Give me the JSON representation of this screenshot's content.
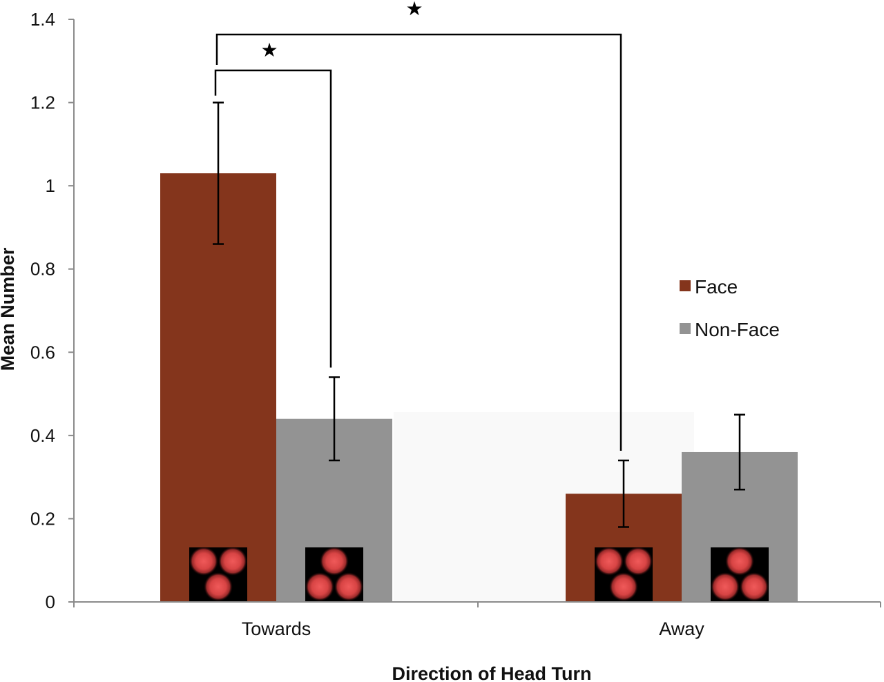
{
  "chart_data": {
    "type": "bar",
    "xlabel": "Direction of Head Turn",
    "ylabel": "Mean Number",
    "ylim": [
      0,
      1.4
    ],
    "yticks": [
      "0",
      "0.2",
      "0.4",
      "0.6",
      "0.8",
      "1",
      "1.2",
      "1.4"
    ],
    "categories": [
      "Towards",
      "Away"
    ],
    "series": [
      {
        "name": "Face",
        "color": "#84351c",
        "values": [
          1.03,
          0.26
        ],
        "error": [
          0.17,
          0.08
        ]
      },
      {
        "name": "Non-Face",
        "color": "#939393",
        "values": [
          0.44,
          0.36
        ],
        "error": [
          0.1,
          0.09
        ]
      }
    ],
    "legend_position": "right",
    "significance": [
      {
        "from": "Towards-Face",
        "to": "Towards-Non-Face",
        "marker": "★"
      },
      {
        "from": "Towards-Face",
        "to": "Away-Face",
        "marker": "★"
      }
    ],
    "stimulus_icons": {
      "Face": "inverted-triangle-dots",
      "Non-Face": "upright-triangle-dots",
      "dot_color": "#e04848",
      "background": "#000000"
    }
  }
}
